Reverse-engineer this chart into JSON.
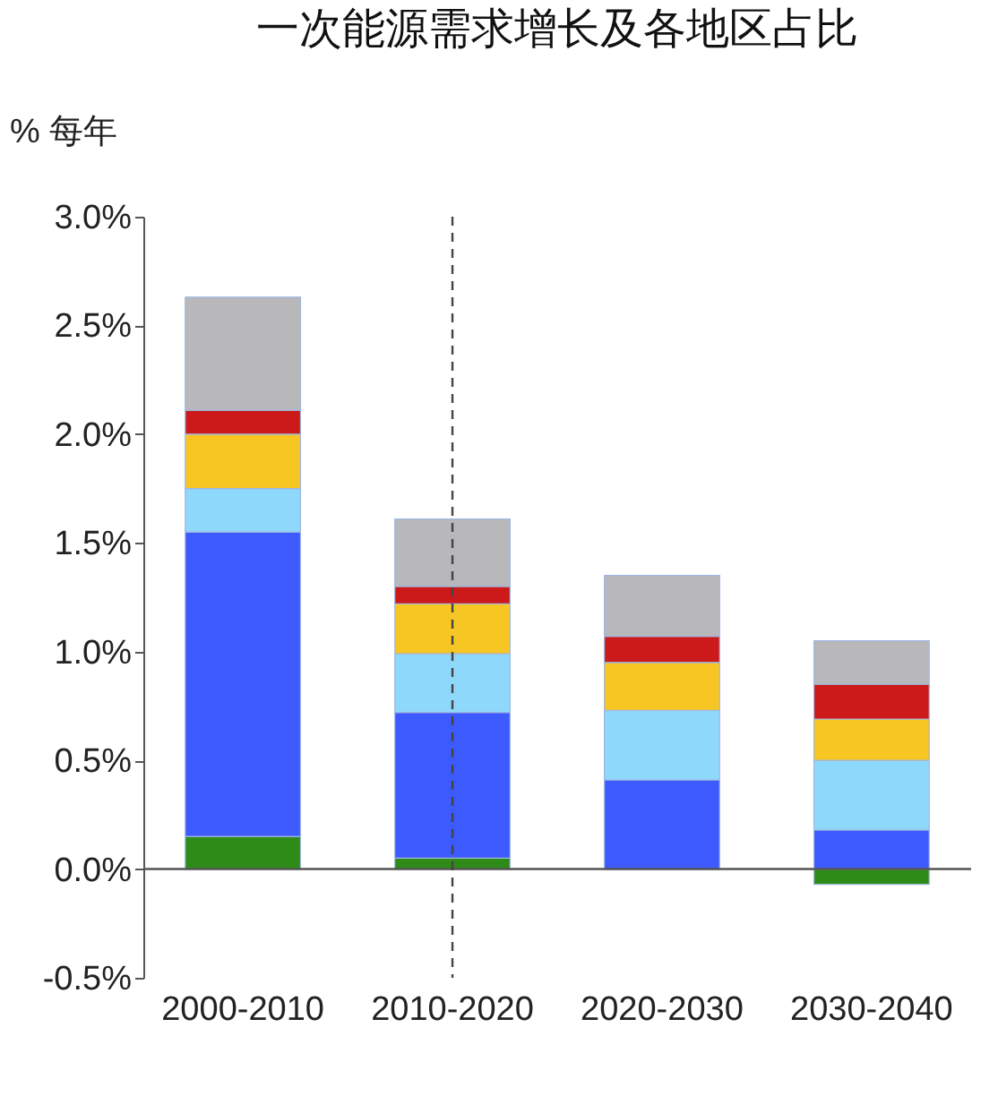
{
  "chart_data": {
    "type": "bar",
    "title": "一次能源需求增长及各地区占比",
    "ylabel": "% 每年",
    "stacked": true,
    "categories": [
      "2000-2010",
      "2010-2020",
      "2020-2030",
      "2030-2040"
    ],
    "series": [
      {
        "color": "#2e8b17",
        "values": [
          0.15,
          0.05,
          0,
          -0.07
        ]
      },
      {
        "color": "#3d5afe",
        "values": [
          1.4,
          0.67,
          0.41,
          0.18
        ]
      },
      {
        "color": "#8ed8fb",
        "values": [
          0.2,
          0.27,
          0.32,
          0.32
        ]
      },
      {
        "color": "#f8c623",
        "values": [
          0.25,
          0.23,
          0.22,
          0.19
        ]
      },
      {
        "color": "#cc1a1a",
        "values": [
          0.11,
          0.08,
          0.12,
          0.16
        ]
      },
      {
        "color": "#b8b7ba",
        "values": [
          0.52,
          0.31,
          0.28,
          0.2
        ]
      }
    ],
    "ylim": [
      -0.5,
      3.0
    ],
    "yticks": [
      {
        "value": -0.5,
        "label": "-0.5%"
      },
      {
        "value": 0,
        "label": "0.0%"
      },
      {
        "value": 0.5,
        "label": "0.5%"
      },
      {
        "value": 1.0,
        "label": "1.0%"
      },
      {
        "value": 1.5,
        "label": "1.5%"
      },
      {
        "value": 2.0,
        "label": "2.0%"
      },
      {
        "value": 2.5,
        "label": "2.5%"
      },
      {
        "value": 3.0,
        "label": "3.0%"
      }
    ],
    "ref_lines": [
      {
        "axis": "y",
        "value": 0
      },
      {
        "axis": "x",
        "value": "2010-2020",
        "line_style": "dashed"
      }
    ],
    "grid": false,
    "legend": false
  }
}
